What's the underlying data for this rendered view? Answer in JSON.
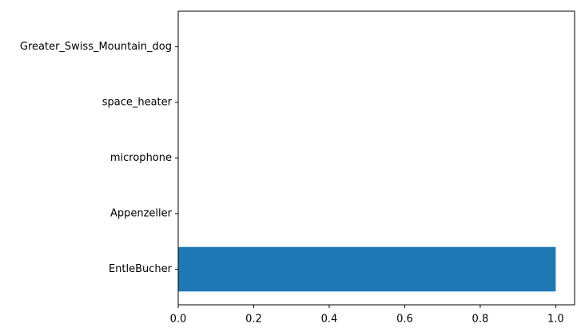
{
  "chart_data": {
    "type": "barh",
    "categories": [
      "EntleBucher",
      "Appenzeller",
      "microphone",
      "space_heater",
      "Greater_Swiss_Mountain_dog"
    ],
    "values": [
      1.0,
      0,
      0,
      0,
      0
    ],
    "color": "#1f77b4",
    "xlim": [
      0,
      1.05
    ],
    "xticks": [
      {
        "value": 0,
        "label": "0.0"
      },
      {
        "value": 0.2,
        "label": "0.2"
      },
      {
        "value": 0.4,
        "label": "0.4"
      },
      {
        "value": 0.6,
        "label": "0.6"
      },
      {
        "value": 0.8,
        "label": "0.8"
      },
      {
        "value": 1,
        "label": "1.0"
      }
    ]
  }
}
